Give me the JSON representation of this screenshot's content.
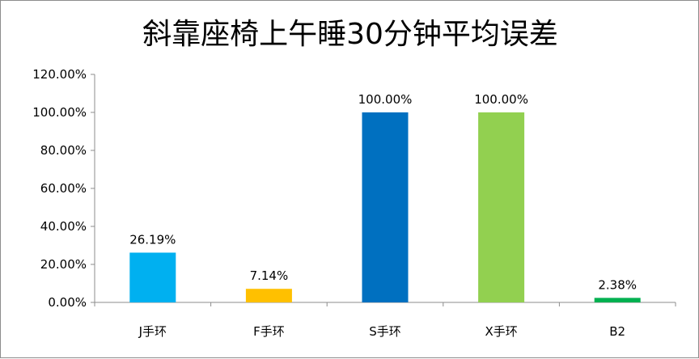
{
  "chart_data": {
    "type": "bar",
    "title": "斜靠座椅上午睡30分钟平均误差",
    "xlabel": "",
    "ylabel": "",
    "categories": [
      "J手环",
      "F手环",
      "S手环",
      "X手环",
      "B2"
    ],
    "values": [
      26.19,
      7.14,
      100.0,
      100.0,
      2.38
    ],
    "data_labels": [
      "26.19%",
      "7.14%",
      "100.00%",
      "100.00%",
      "2.38%"
    ],
    "bar_colors": [
      "#00b0f0",
      "#ffc000",
      "#0070c0",
      "#92d050",
      "#00b050"
    ],
    "ylim": [
      0,
      120
    ],
    "yticks": [
      0,
      20,
      40,
      60,
      80,
      100,
      120
    ],
    "ytick_labels": [
      "0.00%",
      "20.00%",
      "40.00%",
      "60.00%",
      "80.00%",
      "100.00%",
      "120.00%"
    ],
    "grid": false,
    "legend": "none"
  }
}
